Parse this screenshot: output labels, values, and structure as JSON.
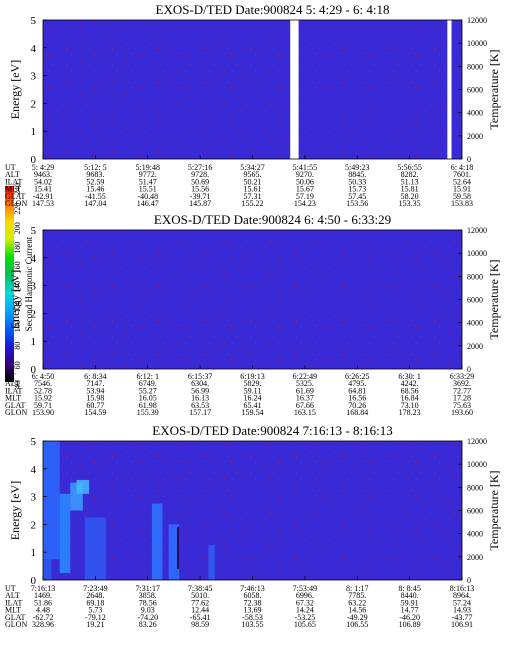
{
  "colorbar": {
    "label": "Second Harmonic Current",
    "ticks": [
      "40",
      "60",
      "80",
      "100",
      "120",
      "140",
      "160",
      "180",
      "200",
      "220",
      "240"
    ],
    "stops": [
      "#000000",
      "#3a007a",
      "#1a1adc",
      "#0060ff",
      "#00a8ff",
      "#00dcdc",
      "#00c060",
      "#00e000",
      "#c8f000",
      "#ffd800",
      "#ff7800",
      "#ff0000"
    ]
  },
  "chart_data": [
    {
      "type": "heatmap",
      "title": "EXOS-D/TED   Date:900824   5: 4:29 - 6: 4:18",
      "ylabel": "Energy [eV]",
      "ylabel_right": "Temperature [K]",
      "ylim": [
        0,
        5
      ],
      "y_ticks": [
        "0",
        "1",
        "2",
        "3",
        "4",
        "5"
      ],
      "y2lim": [
        0,
        12000
      ],
      "y2_ticks": [
        "0",
        "2000",
        "4000",
        "6000",
        "8000",
        "10000",
        "12000"
      ],
      "background_color": "#3a2ad6",
      "row_labels": [
        "UT",
        "ALT",
        "ILAT",
        "MLT",
        "GLAT",
        "GLON"
      ],
      "rows": [
        [
          "5: 4:29",
          "5:12: 5",
          "5:19:48",
          "5:27:16",
          "5:34:27",
          "5:41:55",
          "5:49:23",
          "5:56:55",
          "6: 4:18"
        ],
        [
          "9463.",
          "9683.",
          "9772.",
          "9728.",
          "9565.",
          "9270.",
          "8845.",
          "8282.",
          "7601."
        ],
        [
          "54.02",
          "52.59",
          "51.47",
          "50.69",
          "50.21",
          "50.06",
          "50.33",
          "51.13",
          "52.64"
        ],
        [
          "15.41",
          "15.46",
          "15.51",
          "15.56",
          "15.61",
          "15.67",
          "15.73",
          "15.81",
          "15.91"
        ],
        [
          "-42.91",
          "-41.55",
          "-40.48",
          "-39.71",
          "57.31",
          "57.19",
          "57.45",
          "58.20",
          "59.58"
        ],
        [
          "147.53",
          "147.04",
          "146.47",
          "145.87",
          "155.22",
          "154.23",
          "153.56",
          "153.35",
          "153.83"
        ]
      ],
      "data_gaps": [
        [
          0.59,
          0.61
        ],
        [
          0.965,
          0.975
        ]
      ]
    },
    {
      "type": "heatmap",
      "title": "EXOS-D/TED   Date:900824   6: 4:50 - 6:33:29",
      "ylabel": "Energy [eV]",
      "ylabel_right": "Temperature [K]",
      "ylim": [
        0,
        5
      ],
      "y_ticks": [
        "0",
        "1",
        "2",
        "3",
        "4",
        "5"
      ],
      "y2lim": [
        0,
        12000
      ],
      "y2_ticks": [
        "0",
        "2000",
        "4000",
        "6000",
        "8000",
        "10000",
        "12000"
      ],
      "background_color": "#3a2ad6",
      "row_labels": [
        "UT",
        "ALT",
        "ILAT",
        "MLT",
        "GLAT",
        "GLON"
      ],
      "rows": [
        [
          "6: 4:50",
          "6: 8:34",
          "6:12: 1",
          "6:15:37",
          "6:19:13",
          "6:22:49",
          "6:26:25",
          "6:30: 1",
          "6:33:29"
        ],
        [
          "7546.",
          "7147.",
          "6749.",
          "6304.",
          "5829.",
          "5325.",
          "4795.",
          "4242.",
          "3692."
        ],
        [
          "52.78",
          "53.94",
          "55.27",
          "56.99",
          "59.11",
          "61.69",
          "64.81",
          "68.56",
          "72.77"
        ],
        [
          "15.92",
          "15.98",
          "16.05",
          "16.13",
          "16.24",
          "16.37",
          "16.56",
          "16.84",
          "17.28"
        ],
        [
          "59.71",
          "60.77",
          "61.98",
          "63.53",
          "65.41",
          "67.66",
          "70.26",
          "73.10",
          "75.63"
        ],
        [
          "153.90",
          "154.59",
          "155.39",
          "157.17",
          "159.54",
          "163.15",
          "168.84",
          "178.23",
          "193.60"
        ]
      ],
      "data_gaps": []
    },
    {
      "type": "heatmap",
      "title": "EXOS-D/TED   Date:900824   7:16:13 - 8:16:13",
      "ylabel": "Energy [eV]",
      "ylabel_right": "Temperature [K]",
      "ylim": [
        0,
        5
      ],
      "y_ticks": [
        "0",
        "1",
        "2",
        "3",
        "4",
        "5"
      ],
      "y2lim": [
        0,
        12000
      ],
      "y2_ticks": [
        "0",
        "2000",
        "4000",
        "6000",
        "8000",
        "10000",
        "12000"
      ],
      "background_color": "#3a2ad6",
      "row_labels": [
        "UT",
        "ALT",
        "ILAT",
        "MLT",
        "GLAT",
        "GLON"
      ],
      "rows": [
        [
          "7:16:13",
          "7:23:49",
          "7:31:17",
          "7:38:45",
          "7:46:13",
          "7:53:49",
          "8: 1:17",
          "8: 8:45",
          "8:16:13"
        ],
        [
          "1469.",
          "2648.",
          "3858.",
          "5010.",
          "6058.",
          "6996.",
          "7785.",
          "8440.",
          "8964."
        ],
        [
          "51.86",
          "69.18",
          "78.56",
          "77.62",
          "72.38",
          "67.32",
          "63.22",
          "59.91",
          "57.24"
        ],
        [
          "4.48",
          "5.73",
          "9.03",
          "12.44",
          "13.69",
          "14.24",
          "14.56",
          "14.77",
          "14.93"
        ],
        [
          "-62.72",
          "-79.12",
          "-74.20",
          "-65.41",
          "-58.53",
          "-53.25",
          "-49.29",
          "-46.20",
          "-43.77"
        ],
        [
          "328.96",
          "19.21",
          "83.26",
          "98.59",
          "103.55",
          "105.65",
          "106.55",
          "106.89",
          "106.91"
        ]
      ],
      "data_gaps": []
    }
  ]
}
